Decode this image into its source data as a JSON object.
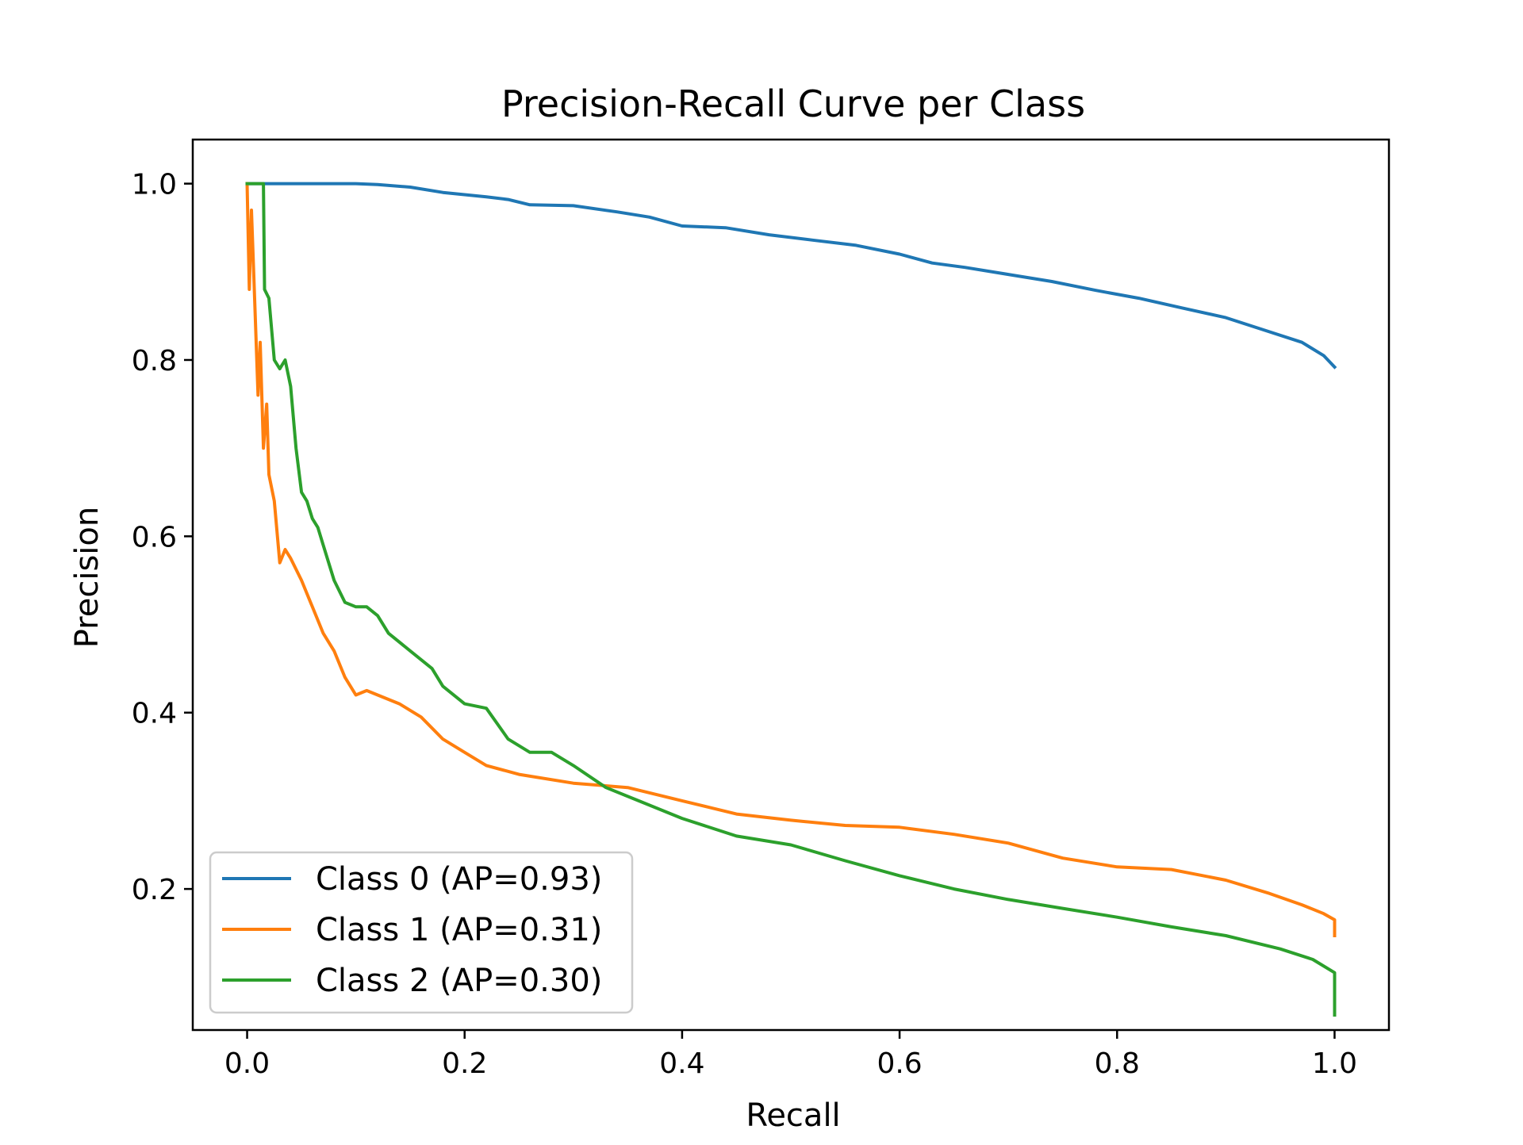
{
  "chart_data": {
    "type": "line",
    "title": "Precision-Recall Curve per Class",
    "xlabel": "Recall",
    "ylabel": "Precision",
    "xlim": [
      -0.05,
      1.05
    ],
    "ylim": [
      0.04,
      1.05
    ],
    "xticks": [
      0.0,
      0.2,
      0.4,
      0.6,
      0.8,
      1.0
    ],
    "yticks": [
      0.2,
      0.4,
      0.6,
      0.8,
      1.0
    ],
    "xtick_labels": [
      "0.0",
      "0.2",
      "0.4",
      "0.6",
      "0.8",
      "1.0"
    ],
    "ytick_labels": [
      "0.2",
      "0.4",
      "0.6",
      "0.8",
      "1.0"
    ],
    "grid": false,
    "legend_position": "lower-left",
    "series": [
      {
        "name": "Class 0 (AP=0.93)",
        "color": "#1f77b4",
        "points": [
          [
            0.0,
            1.0
          ],
          [
            0.1,
            1.0
          ],
          [
            0.12,
            0.999
          ],
          [
            0.15,
            0.996
          ],
          [
            0.18,
            0.99
          ],
          [
            0.22,
            0.985
          ],
          [
            0.24,
            0.982
          ],
          [
            0.26,
            0.976
          ],
          [
            0.3,
            0.975
          ],
          [
            0.34,
            0.968
          ],
          [
            0.37,
            0.962
          ],
          [
            0.4,
            0.952
          ],
          [
            0.44,
            0.95
          ],
          [
            0.48,
            0.942
          ],
          [
            0.52,
            0.936
          ],
          [
            0.56,
            0.93
          ],
          [
            0.6,
            0.92
          ],
          [
            0.63,
            0.91
          ],
          [
            0.66,
            0.905
          ],
          [
            0.7,
            0.897
          ],
          [
            0.74,
            0.889
          ],
          [
            0.78,
            0.879
          ],
          [
            0.82,
            0.87
          ],
          [
            0.86,
            0.859
          ],
          [
            0.9,
            0.848
          ],
          [
            0.94,
            0.832
          ],
          [
            0.97,
            0.82
          ],
          [
            0.99,
            0.805
          ],
          [
            1.0,
            0.792
          ]
        ]
      },
      {
        "name": "Class 1 (AP=0.31)",
        "color": "#ff7f0e",
        "points": [
          [
            0.0,
            1.0
          ],
          [
            0.002,
            0.88
          ],
          [
            0.004,
            0.97
          ],
          [
            0.006,
            0.9
          ],
          [
            0.01,
            0.76
          ],
          [
            0.012,
            0.82
          ],
          [
            0.015,
            0.7
          ],
          [
            0.018,
            0.75
          ],
          [
            0.02,
            0.67
          ],
          [
            0.025,
            0.64
          ],
          [
            0.03,
            0.57
          ],
          [
            0.035,
            0.585
          ],
          [
            0.04,
            0.575
          ],
          [
            0.05,
            0.55
          ],
          [
            0.06,
            0.52
          ],
          [
            0.07,
            0.49
          ],
          [
            0.08,
            0.47
          ],
          [
            0.09,
            0.44
          ],
          [
            0.1,
            0.42
          ],
          [
            0.11,
            0.425
          ],
          [
            0.12,
            0.42
          ],
          [
            0.14,
            0.41
          ],
          [
            0.16,
            0.395
          ],
          [
            0.18,
            0.37
          ],
          [
            0.2,
            0.355
          ],
          [
            0.22,
            0.34
          ],
          [
            0.25,
            0.33
          ],
          [
            0.3,
            0.32
          ],
          [
            0.35,
            0.315
          ],
          [
            0.4,
            0.3
          ],
          [
            0.45,
            0.285
          ],
          [
            0.5,
            0.278
          ],
          [
            0.55,
            0.272
          ],
          [
            0.6,
            0.27
          ],
          [
            0.65,
            0.262
          ],
          [
            0.7,
            0.252
          ],
          [
            0.75,
            0.235
          ],
          [
            0.8,
            0.225
          ],
          [
            0.85,
            0.222
          ],
          [
            0.9,
            0.21
          ],
          [
            0.94,
            0.195
          ],
          [
            0.97,
            0.182
          ],
          [
            0.99,
            0.172
          ],
          [
            1.0,
            0.165
          ],
          [
            1.0,
            0.147
          ]
        ]
      },
      {
        "name": "Class 2 (AP=0.30)",
        "color": "#2ca02c",
        "points": [
          [
            0.0,
            1.0
          ],
          [
            0.015,
            1.0
          ],
          [
            0.016,
            0.88
          ],
          [
            0.02,
            0.87
          ],
          [
            0.025,
            0.8
          ],
          [
            0.03,
            0.79
          ],
          [
            0.035,
            0.8
          ],
          [
            0.04,
            0.77
          ],
          [
            0.045,
            0.7
          ],
          [
            0.05,
            0.65
          ],
          [
            0.055,
            0.64
          ],
          [
            0.06,
            0.62
          ],
          [
            0.065,
            0.61
          ],
          [
            0.07,
            0.59
          ],
          [
            0.08,
            0.55
          ],
          [
            0.09,
            0.525
          ],
          [
            0.1,
            0.52
          ],
          [
            0.11,
            0.52
          ],
          [
            0.12,
            0.51
          ],
          [
            0.13,
            0.49
          ],
          [
            0.15,
            0.47
          ],
          [
            0.17,
            0.45
          ],
          [
            0.18,
            0.43
          ],
          [
            0.2,
            0.41
          ],
          [
            0.22,
            0.405
          ],
          [
            0.24,
            0.37
          ],
          [
            0.26,
            0.355
          ],
          [
            0.28,
            0.355
          ],
          [
            0.3,
            0.34
          ],
          [
            0.33,
            0.315
          ],
          [
            0.36,
            0.3
          ],
          [
            0.4,
            0.28
          ],
          [
            0.45,
            0.26
          ],
          [
            0.5,
            0.25
          ],
          [
            0.55,
            0.232
          ],
          [
            0.6,
            0.215
          ],
          [
            0.65,
            0.2
          ],
          [
            0.7,
            0.188
          ],
          [
            0.75,
            0.178
          ],
          [
            0.8,
            0.168
          ],
          [
            0.85,
            0.157
          ],
          [
            0.9,
            0.147
          ],
          [
            0.95,
            0.132
          ],
          [
            0.98,
            0.12
          ],
          [
            1.0,
            0.105
          ],
          [
            1.0,
            0.057
          ]
        ]
      }
    ]
  }
}
